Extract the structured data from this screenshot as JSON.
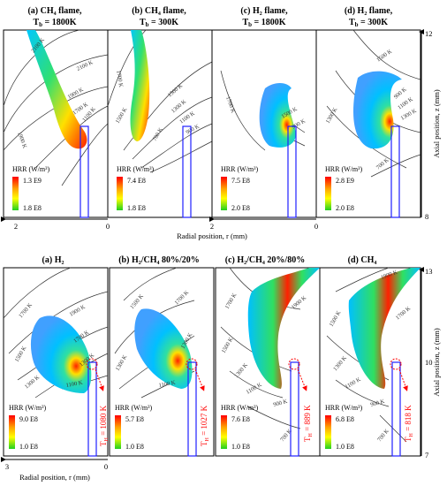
{
  "top_row": {
    "panels": [
      {
        "label": "(a) CH₄ flame,",
        "tb": "T",
        "tb_sub": "b",
        "tb_val": " = 1800K",
        "hrr_label": "HRR (W/m³)",
        "hrr_max": "1.3 E9",
        "hrr_min": "1.8 E8",
        "isotherms": [
          "2100 K",
          "2100 K",
          "1900 K",
          "1700 K",
          "1100 K",
          "1900 K"
        ]
      },
      {
        "label": "(b) CH₄ flame,",
        "tb": "T",
        "tb_sub": "b",
        "tb_val": " = 300K",
        "hrr_label": "HRR (W/m³)",
        "hrr_max": "7.4 E8",
        "hrr_min": "1.8 E8",
        "isotherms": [
          "1700 K",
          "1500 K",
          "1500 K",
          "1300 K",
          "1100 K",
          "900 K",
          "700 K"
        ]
      },
      {
        "label": "(c) H₂ flame,",
        "tb": "T",
        "tb_sub": "b",
        "tb_val": " = 1800K",
        "hrr_label": "HRR (W/m³)",
        "hrr_max": "7.5 E8",
        "hrr_min": "2.0 E8",
        "isotherms": [
          "1700 K",
          "1500 K",
          "900 K"
        ]
      },
      {
        "label": "(d) H₂ flame,",
        "tb": "T",
        "tb_sub": "b",
        "tb_val": " = 300K",
        "hrr_label": "HRR (W/m³)",
        "hrr_max": "2.8 E9",
        "hrr_min": "2.0 E8",
        "isotherms": [
          "1500 K",
          "1300 K",
          "900 K",
          "1100 K",
          "1300 K",
          "700 K"
        ]
      }
    ],
    "x_ticks": [
      "2",
      "0",
      "2",
      "0"
    ],
    "x_label": "Radial position, r (mm)",
    "y_ticks": [
      "12",
      "8"
    ],
    "y_label": "Axial position, z (mm)"
  },
  "bottom_row": {
    "panels": [
      {
        "label": "(a) H₂",
        "hrr_label": "HRR (W/m³)",
        "hrr_max": "9.0 E8",
        "hrr_min": "1.0 E8",
        "th": "T",
        "th_sub": "H",
        "th_val": " = 1080 K",
        "isotherms": [
          "1700 K",
          "1500 K",
          "1300 K",
          "1900 K",
          "1700 K",
          "1300 K",
          "1100 K"
        ]
      },
      {
        "label": "(b) H₂/CH₄ 80%/20%",
        "hrr_label": "HRR (W/m³)",
        "hrr_max": "5.7 E8",
        "hrr_min": "1.0 E8",
        "th": "T",
        "th_sub": "H",
        "th_val": " = 1027 K",
        "isotherms": [
          "1500 K",
          "1300 K",
          "1700 K",
          "1300 K",
          "1100 K"
        ]
      },
      {
        "label": "(c) H₂/CH₄ 20%/80%",
        "hrr_label": "HRR (W/m³)",
        "hrr_max": "7.6 E8",
        "hrr_min": "1.0 E8",
        "th": "T",
        "th_sub": "H",
        "th_val": " = 889 K",
        "isotherms": [
          "1700 K",
          "1500 K",
          "1900 K",
          "1300 K",
          "1100 K",
          "900 K",
          "700 K"
        ]
      },
      {
        "label": "(d) CH₄",
        "hrr_label": "HRR (W/m³)",
        "hrr_max": "6.8 E8",
        "hrr_min": "1.0 E8",
        "th": "T",
        "th_sub": "H",
        "th_val": " = 818 K",
        "isotherms": [
          "1900 K",
          "1700 K",
          "1500 K",
          "1300 K",
          "1100 K",
          "900 K",
          "700 K"
        ]
      }
    ],
    "x_ticks": [
      "3",
      "0"
    ],
    "x_label": "Radial position, r (mm)",
    "y_ticks": [
      "13",
      "10",
      "7"
    ],
    "y_label": "Axial position, z (mm)"
  },
  "colors": {
    "flame_hot": "#ff0000",
    "flame_mid": "#ffff00",
    "flame_low": "#00c8ff",
    "burner": "#2020ff",
    "callout": "#ff0000"
  }
}
